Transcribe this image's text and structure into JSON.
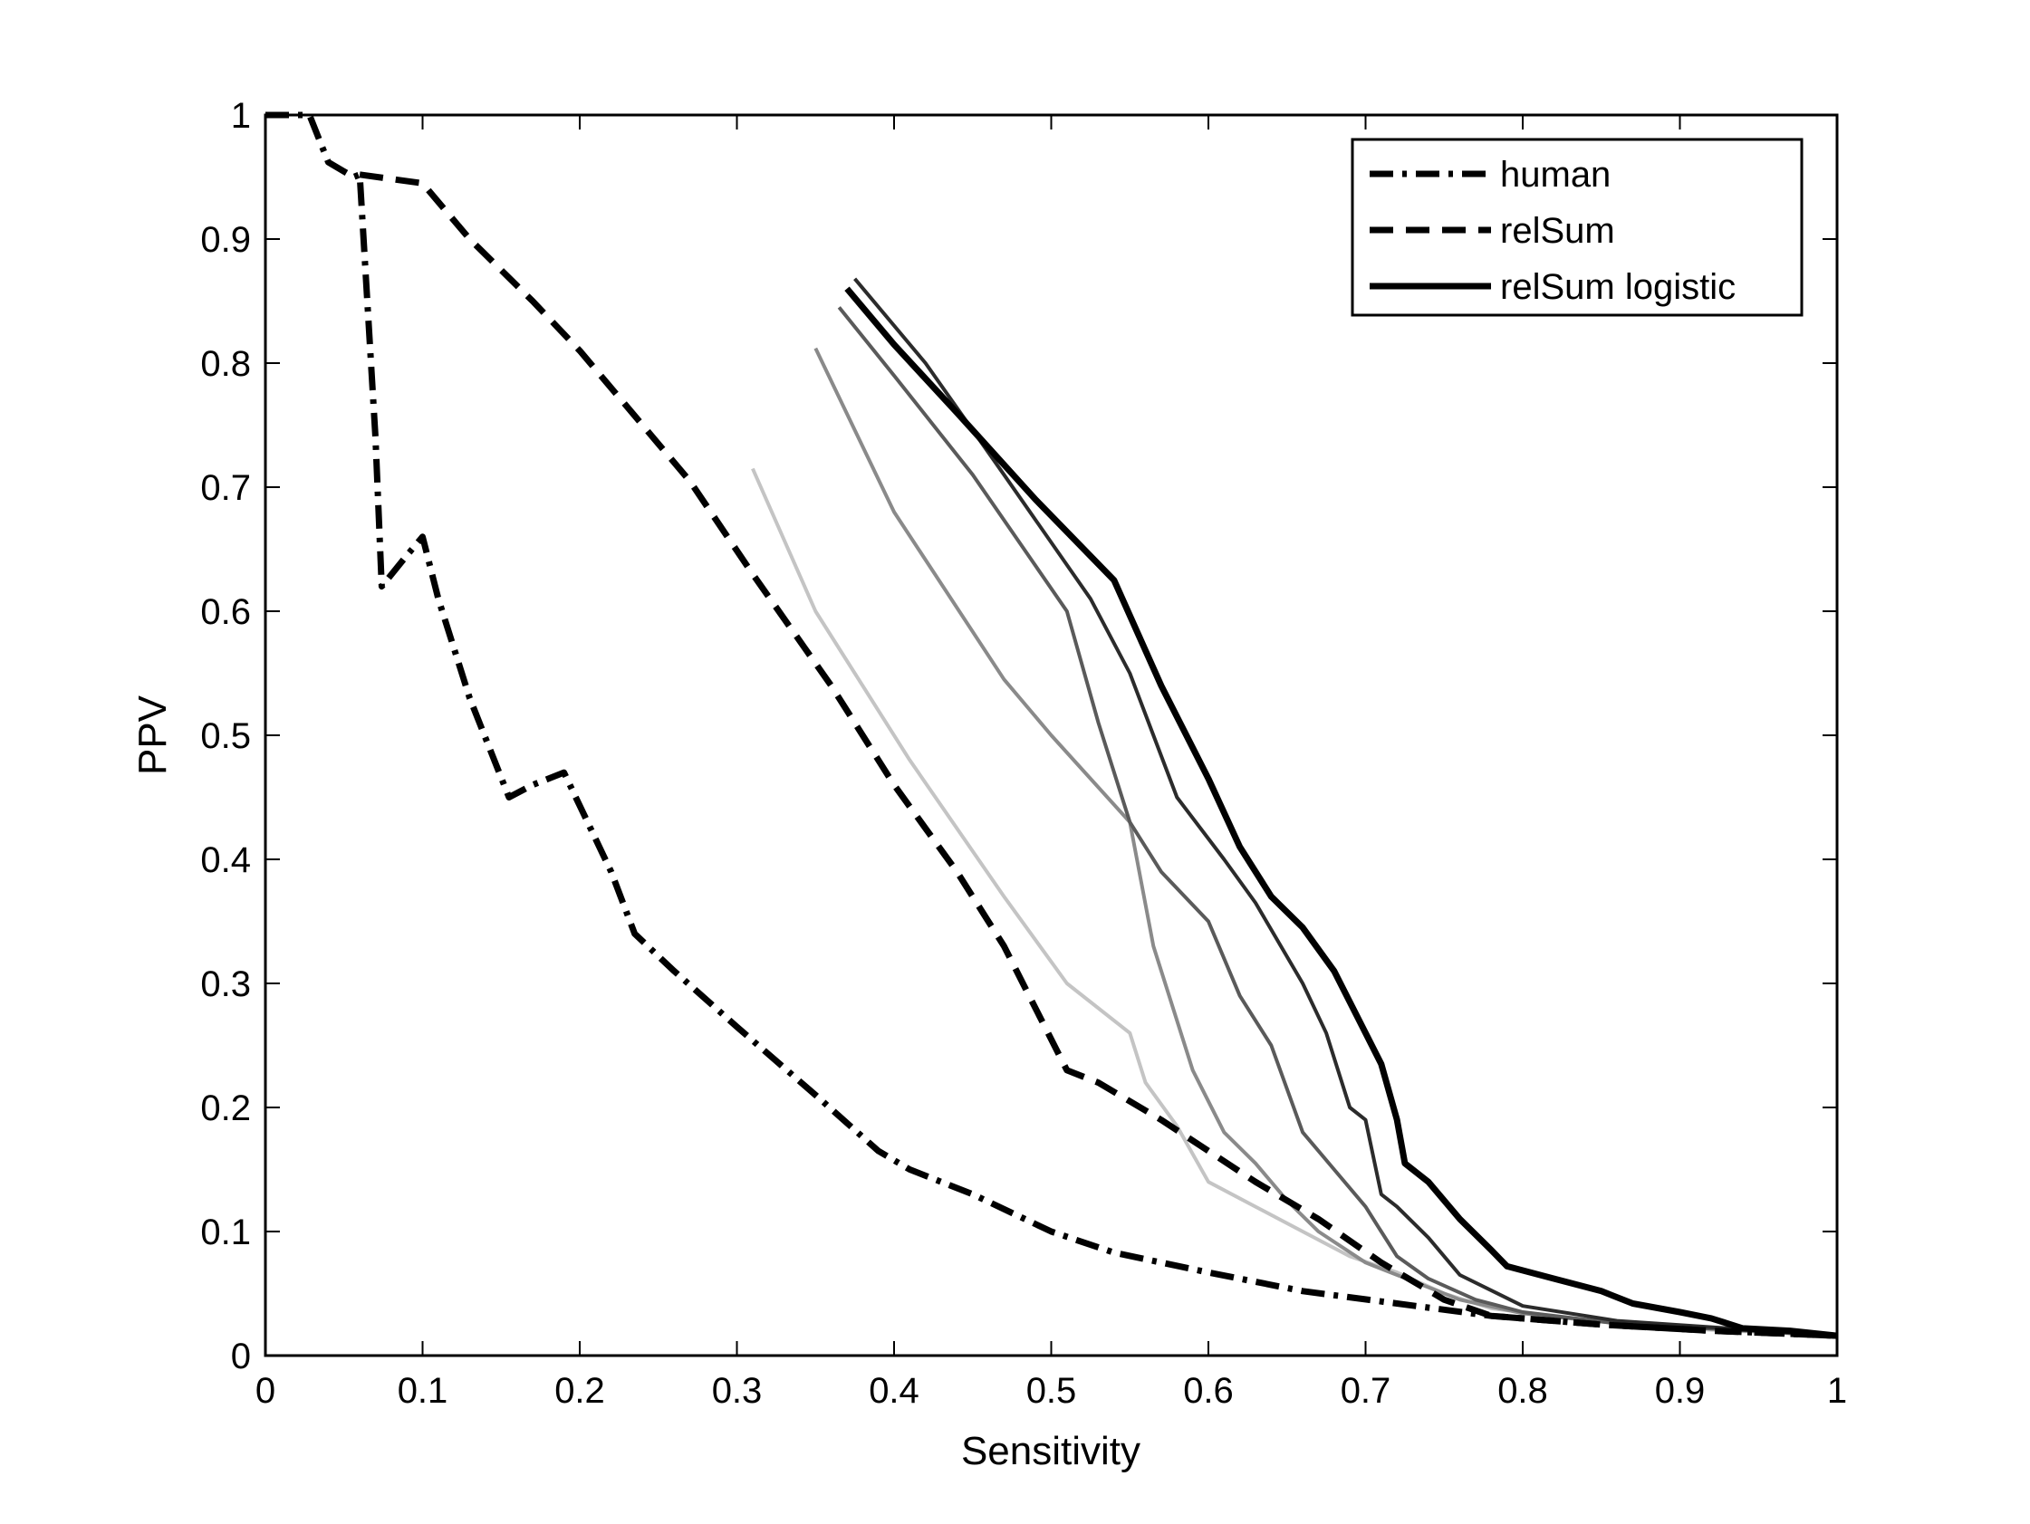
{
  "chart_data": {
    "type": "line",
    "title": "",
    "xlabel": "Sensitivity",
    "ylabel": "PPV",
    "xlim": [
      0,
      1
    ],
    "ylim": [
      0,
      1
    ],
    "xticks": [
      "0",
      "0.1",
      "0.2",
      "0.3",
      "0.4",
      "0.5",
      "0.6",
      "0.7",
      "0.8",
      "0.9",
      "1"
    ],
    "yticks": [
      "0",
      "0.1",
      "0.2",
      "0.3",
      "0.4",
      "0.5",
      "0.6",
      "0.7",
      "0.8",
      "0.9",
      "1"
    ],
    "grid": false,
    "legend_position": "top-right",
    "series": [
      {
        "name": "human",
        "style": "dashdot",
        "color": "#000000",
        "width": 7,
        "points": [
          [
            0,
            1
          ],
          [
            0.028,
            1
          ],
          [
            0.04,
            0.962
          ],
          [
            0.056,
            0.95
          ],
          [
            0.06,
            0.952
          ],
          [
            0.07,
            0.74
          ],
          [
            0.074,
            0.62
          ],
          [
            0.09,
            0.645
          ],
          [
            0.1,
            0.66
          ],
          [
            0.11,
            0.61
          ],
          [
            0.13,
            0.53
          ],
          [
            0.155,
            0.45
          ],
          [
            0.17,
            0.46
          ],
          [
            0.19,
            0.47
          ],
          [
            0.22,
            0.39
          ],
          [
            0.235,
            0.34
          ],
          [
            0.26,
            0.31
          ],
          [
            0.3,
            0.265
          ],
          [
            0.35,
            0.21
          ],
          [
            0.39,
            0.165
          ],
          [
            0.41,
            0.15
          ],
          [
            0.45,
            0.13
          ],
          [
            0.5,
            0.1
          ],
          [
            0.54,
            0.083
          ],
          [
            0.6,
            0.067
          ],
          [
            0.66,
            0.052
          ],
          [
            0.72,
            0.042
          ],
          [
            0.78,
            0.032
          ],
          [
            0.85,
            0.025
          ],
          [
            0.92,
            0.02
          ],
          [
            1,
            0.016
          ]
        ]
      },
      {
        "name": "relSum",
        "style": "dashed",
        "color": "#000000",
        "width": 7,
        "points": [
          [
            0.06,
            0.952
          ],
          [
            0.1,
            0.945
          ],
          [
            0.13,
            0.9
          ],
          [
            0.17,
            0.85
          ],
          [
            0.2,
            0.81
          ],
          [
            0.24,
            0.75
          ],
          [
            0.27,
            0.705
          ],
          [
            0.31,
            0.63
          ],
          [
            0.36,
            0.54
          ],
          [
            0.4,
            0.46
          ],
          [
            0.44,
            0.39
          ],
          [
            0.47,
            0.33
          ],
          [
            0.51,
            0.23
          ],
          [
            0.53,
            0.22
          ],
          [
            0.57,
            0.19
          ],
          [
            0.6,
            0.165
          ],
          [
            0.63,
            0.14
          ],
          [
            0.67,
            0.11
          ],
          [
            0.71,
            0.075
          ],
          [
            0.75,
            0.045
          ],
          [
            0.78,
            0.032
          ],
          [
            0.85,
            0.025
          ],
          [
            0.92,
            0.02
          ],
          [
            1,
            0.016
          ]
        ]
      },
      {
        "name": "relSum logistic",
        "style": "solid",
        "color": "#000000",
        "width": 7,
        "points": [
          [
            0.37,
            0.86
          ],
          [
            0.4,
            0.815
          ],
          [
            0.44,
            0.76
          ],
          [
            0.49,
            0.69
          ],
          [
            0.54,
            0.625
          ],
          [
            0.57,
            0.54
          ],
          [
            0.6,
            0.465
          ],
          [
            0.62,
            0.41
          ],
          [
            0.64,
            0.37
          ],
          [
            0.66,
            0.345
          ],
          [
            0.68,
            0.31
          ],
          [
            0.7,
            0.26
          ],
          [
            0.71,
            0.235
          ],
          [
            0.72,
            0.19
          ],
          [
            0.725,
            0.155
          ],
          [
            0.74,
            0.14
          ],
          [
            0.76,
            0.11
          ],
          [
            0.78,
            0.085
          ],
          [
            0.79,
            0.072
          ],
          [
            0.82,
            0.062
          ],
          [
            0.85,
            0.052
          ],
          [
            0.87,
            0.042
          ],
          [
            0.9,
            0.035
          ],
          [
            0.92,
            0.03
          ],
          [
            0.94,
            0.022
          ],
          [
            0.97,
            0.02
          ],
          [
            1,
            0.016
          ]
        ]
      },
      {
        "name": "",
        "style": "solid",
        "color": "#2b2b2b",
        "width": 4,
        "points": [
          [
            0.375,
            0.868
          ],
          [
            0.42,
            0.8
          ],
          [
            0.47,
            0.71
          ],
          [
            0.525,
            0.61
          ],
          [
            0.55,
            0.55
          ],
          [
            0.58,
            0.45
          ],
          [
            0.61,
            0.4
          ],
          [
            0.63,
            0.365
          ],
          [
            0.66,
            0.3
          ],
          [
            0.675,
            0.26
          ],
          [
            0.69,
            0.2
          ],
          [
            0.7,
            0.19
          ],
          [
            0.71,
            0.13
          ],
          [
            0.72,
            0.12
          ],
          [
            0.74,
            0.095
          ],
          [
            0.76,
            0.065
          ],
          [
            0.8,
            0.04
          ],
          [
            0.86,
            0.028
          ],
          [
            1,
            0.016
          ]
        ]
      },
      {
        "name": "",
        "style": "solid",
        "color": "#5a5a5a",
        "width": 4,
        "points": [
          [
            0.365,
            0.845
          ],
          [
            0.4,
            0.79
          ],
          [
            0.45,
            0.71
          ],
          [
            0.51,
            0.6
          ],
          [
            0.53,
            0.51
          ],
          [
            0.55,
            0.43
          ],
          [
            0.57,
            0.39
          ],
          [
            0.6,
            0.35
          ],
          [
            0.62,
            0.29
          ],
          [
            0.64,
            0.25
          ],
          [
            0.66,
            0.18
          ],
          [
            0.68,
            0.15
          ],
          [
            0.7,
            0.12
          ],
          [
            0.71,
            0.1
          ],
          [
            0.72,
            0.08
          ],
          [
            0.74,
            0.062
          ],
          [
            0.77,
            0.045
          ],
          [
            0.8,
            0.035
          ],
          [
            0.86,
            0.026
          ],
          [
            1,
            0.016
          ]
        ]
      },
      {
        "name": "",
        "style": "solid",
        "color": "#8a8a8a",
        "width": 4,
        "points": [
          [
            0.35,
            0.812
          ],
          [
            0.4,
            0.68
          ],
          [
            0.47,
            0.545
          ],
          [
            0.5,
            0.5
          ],
          [
            0.55,
            0.43
          ],
          [
            0.565,
            0.33
          ],
          [
            0.59,
            0.23
          ],
          [
            0.6,
            0.205
          ],
          [
            0.61,
            0.18
          ],
          [
            0.63,
            0.155
          ],
          [
            0.65,
            0.125
          ],
          [
            0.67,
            0.1
          ],
          [
            0.7,
            0.075
          ],
          [
            0.73,
            0.06
          ],
          [
            0.76,
            0.045
          ],
          [
            0.8,
            0.034
          ],
          [
            0.86,
            0.026
          ],
          [
            1,
            0.016
          ]
        ]
      },
      {
        "name": "",
        "style": "solid",
        "color": "#c4c4c4",
        "width": 4,
        "points": [
          [
            0.31,
            0.715
          ],
          [
            0.35,
            0.6
          ],
          [
            0.41,
            0.48
          ],
          [
            0.47,
            0.37
          ],
          [
            0.51,
            0.3
          ],
          [
            0.55,
            0.26
          ],
          [
            0.56,
            0.22
          ],
          [
            0.58,
            0.185
          ],
          [
            0.6,
            0.14
          ],
          [
            0.63,
            0.12
          ],
          [
            0.66,
            0.1
          ],
          [
            0.69,
            0.08
          ],
          [
            0.72,
            0.067
          ],
          [
            0.75,
            0.05
          ],
          [
            0.78,
            0.038
          ],
          [
            0.83,
            0.03
          ],
          [
            0.9,
            0.022
          ],
          [
            1,
            0.016
          ]
        ]
      }
    ]
  }
}
